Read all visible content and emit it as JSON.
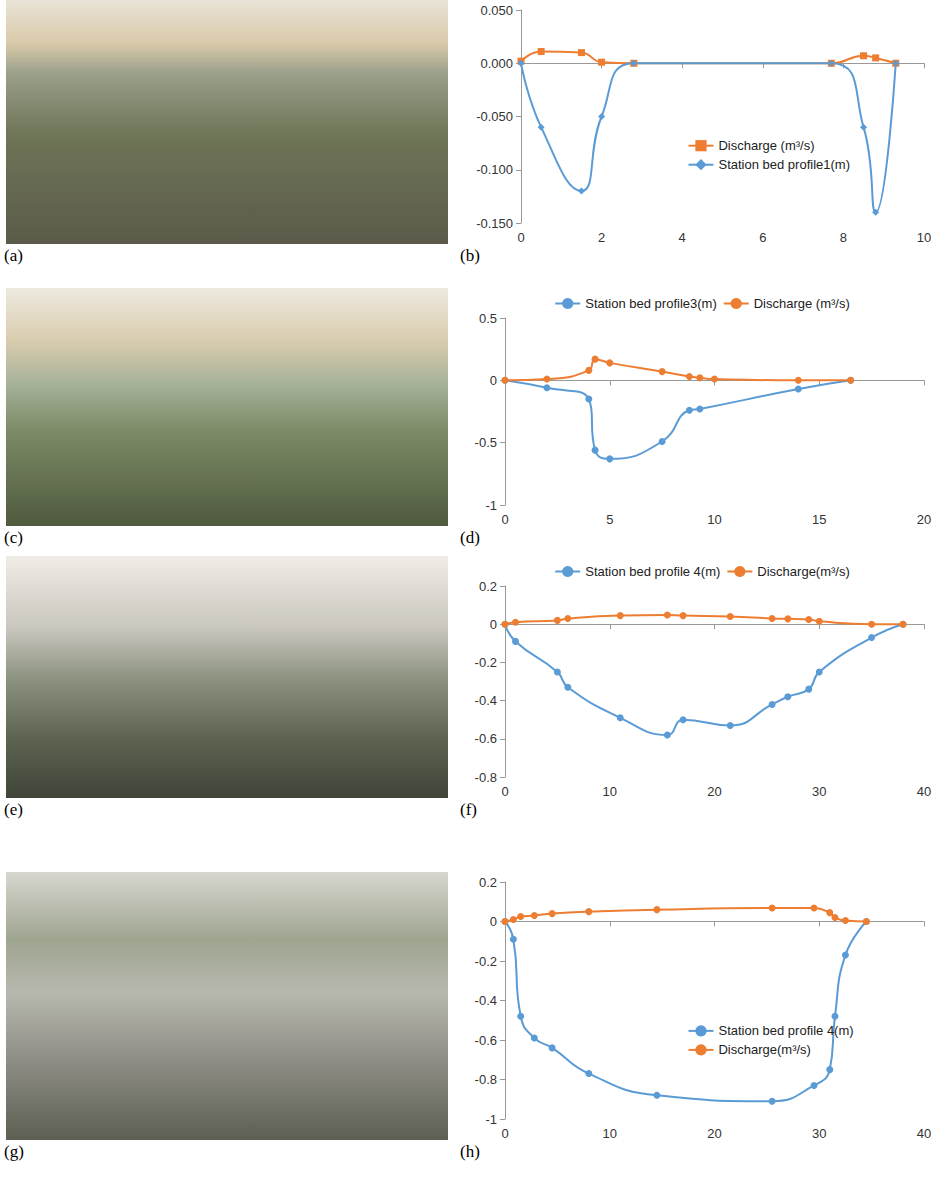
{
  "chart_data": [
    {
      "type": "line",
      "panel": "(b)",
      "photo_panel": "(a)",
      "xlim": [
        0,
        10
      ],
      "xticks": [
        0,
        2,
        4,
        6,
        8,
        10
      ],
      "ylim": [
        -0.15,
        0.05
      ],
      "yticks": [
        {
          "value": -0.15,
          "label": "-0.150"
        },
        {
          "value": -0.1,
          "label": "-0.100"
        },
        {
          "value": -0.05,
          "label": "-0.050"
        },
        {
          "value": 0,
          "label": "0.000"
        },
        {
          "value": 0.05,
          "label": "0.050"
        }
      ],
      "grid": false,
      "legend": "center",
      "series": [
        {
          "name": "Discharge (m³/s)",
          "color": "#ed7d31",
          "marker": "square",
          "line_style": "solid",
          "x": [
            0,
            0.5,
            1.5,
            2,
            2.8,
            7.7,
            8.5,
            8.8,
            9.3
          ],
          "values": [
            0.002,
            0.011,
            0.01,
            0.001,
            0,
            0,
            0.007,
            0.005,
            0
          ]
        },
        {
          "name": "Station bed profile1(m)",
          "color": "#5b9bd5",
          "marker": "diamond",
          "line_style": "solid",
          "x": [
            0,
            0.5,
            1.5,
            2,
            2.8,
            7.7,
            8.5,
            8.8,
            9.3
          ],
          "values": [
            0,
            -0.06,
            -0.12,
            -0.05,
            0,
            0,
            -0.06,
            -0.14,
            0
          ]
        }
      ]
    },
    {
      "type": "line",
      "panel": "(d)",
      "photo_panel": "(c)",
      "xlim": [
        0,
        20
      ],
      "xticks": [
        0,
        5,
        10,
        15,
        20
      ],
      "ylim": [
        -1,
        0.5
      ],
      "yticks": [
        -1,
        -0.5,
        0,
        0.5
      ],
      "grid": false,
      "legend": "top",
      "series": [
        {
          "name": "Station bed profile3(m)",
          "color": "#5b9bd5",
          "marker": "circle",
          "line_style": "solid",
          "x": [
            0,
            2,
            4,
            4.3,
            5,
            7.5,
            8.8,
            9.3,
            14,
            16.5
          ],
          "values": [
            0,
            -0.06,
            -0.15,
            -0.56,
            -0.63,
            -0.49,
            -0.24,
            -0.23,
            -0.07,
            0
          ]
        },
        {
          "name": "Discharge (m³/s)",
          "color": "#ed7d31",
          "marker": "circle",
          "line_style": "solid",
          "x": [
            0,
            2,
            4,
            4.3,
            5,
            7.5,
            8.8,
            9.3,
            10,
            14,
            16.5
          ],
          "values": [
            0,
            0.01,
            0.08,
            0.17,
            0.14,
            0.07,
            0.03,
            0.02,
            0.01,
            0,
            0
          ]
        }
      ]
    },
    {
      "type": "line",
      "panel": "(f)",
      "photo_panel": "(e)",
      "xlim": [
        0,
        40
      ],
      "xticks": [
        0,
        10,
        20,
        30,
        40
      ],
      "ylim": [
        -0.8,
        0.2
      ],
      "yticks": [
        -0.8,
        -0.6,
        -0.4,
        -0.2,
        0,
        0.2
      ],
      "grid": false,
      "legend": "top",
      "series": [
        {
          "name": "Station bed profile 4(m)",
          "color": "#5b9bd5",
          "marker": "circle",
          "line_style": "solid",
          "x": [
            0,
            1,
            5,
            6,
            11,
            15.5,
            17,
            21.5,
            25.5,
            27,
            29,
            30,
            35,
            38
          ],
          "values": [
            0,
            -0.09,
            -0.25,
            -0.33,
            -0.49,
            -0.58,
            -0.5,
            -0.53,
            -0.42,
            -0.38,
            -0.34,
            -0.25,
            -0.07,
            0
          ]
        },
        {
          "name": "Discharge(m³/s)",
          "color": "#ed7d31",
          "marker": "circle",
          "line_style": "solid",
          "x": [
            0,
            1,
            5,
            6,
            11,
            15.5,
            17,
            21.5,
            25.5,
            27,
            29,
            30,
            35,
            38
          ],
          "values": [
            0,
            0.01,
            0.02,
            0.03,
            0.045,
            0.048,
            0.045,
            0.04,
            0.03,
            0.028,
            0.025,
            0.015,
            0,
            0
          ]
        }
      ]
    },
    {
      "type": "line",
      "panel": "(h)",
      "photo_panel": "(g)",
      "xlim": [
        0,
        40
      ],
      "xticks": [
        0,
        10,
        20,
        30,
        40
      ],
      "ylim": [
        -1,
        0.2
      ],
      "yticks": [
        -1,
        -0.8,
        -0.6,
        -0.4,
        -0.2,
        0,
        0.2
      ],
      "grid": false,
      "legend": "center",
      "series": [
        {
          "name": "Station bed profile 4(m)",
          "color": "#5b9bd5",
          "marker": "circle",
          "line_style": "solid",
          "x": [
            0,
            0.8,
            1.5,
            2.8,
            4.5,
            8,
            14.5,
            25.5,
            29.5,
            31,
            31.5,
            32.5,
            34.5
          ],
          "values": [
            0,
            -0.09,
            -0.48,
            -0.59,
            -0.64,
            -0.77,
            -0.88,
            -0.91,
            -0.83,
            -0.75,
            -0.48,
            -0.17,
            0
          ]
        },
        {
          "name": "Discharge(m³/s)",
          "color": "#ed7d31",
          "marker": "circle",
          "line_style": "solid",
          "x": [
            0,
            0.8,
            1.5,
            2.8,
            4.5,
            8,
            14.5,
            25.5,
            29.5,
            31,
            31.5,
            32.5,
            34.5
          ],
          "values": [
            0,
            0.01,
            0.025,
            0.03,
            0.04,
            0.05,
            0.06,
            0.068,
            0.068,
            0.045,
            0.02,
            0.005,
            0
          ]
        }
      ]
    }
  ]
}
